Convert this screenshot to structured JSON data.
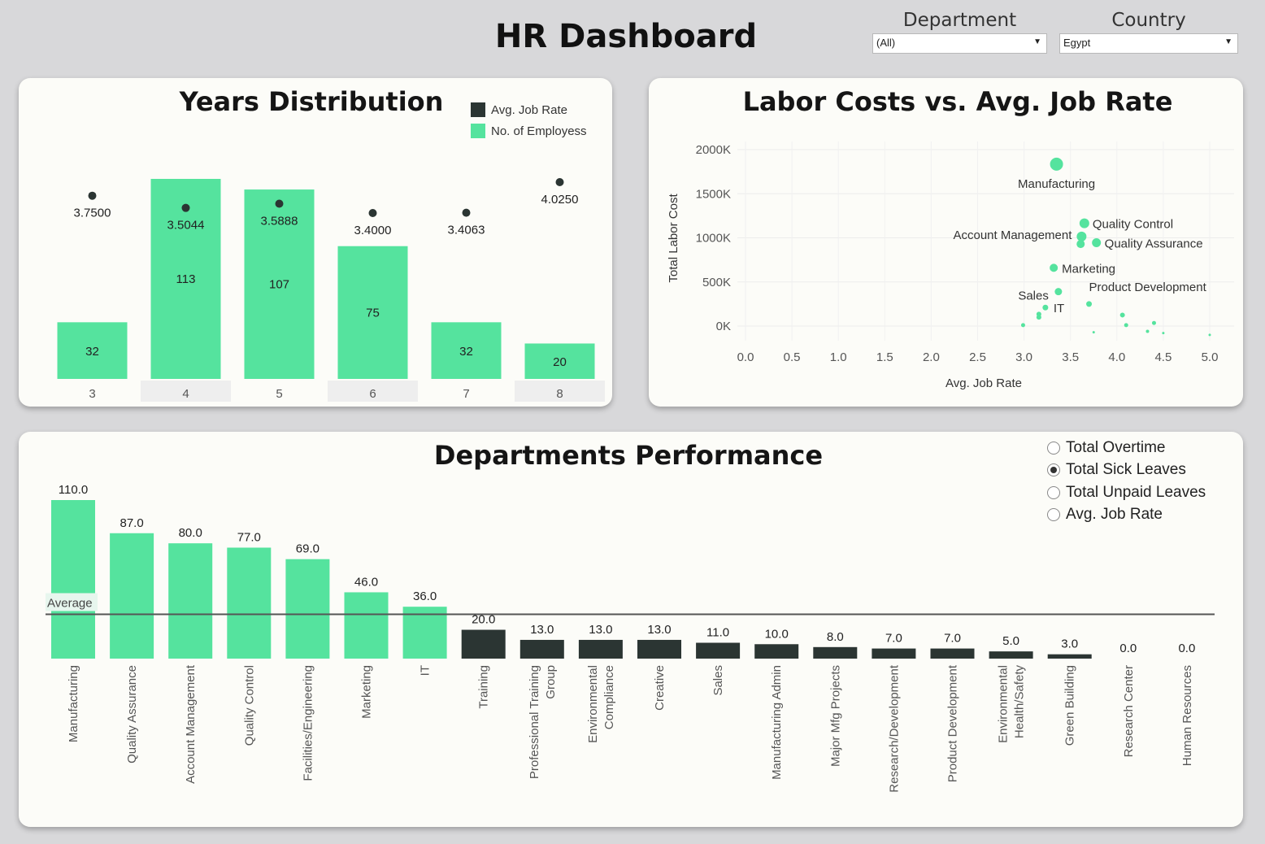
{
  "header": {
    "title": "HR Dashboard"
  },
  "filters": {
    "department": {
      "label": "Department",
      "value": "(All)"
    },
    "country": {
      "label": "Country",
      "value": "Egypt"
    }
  },
  "colors": {
    "green": "#55e39e",
    "dark": "#2b3533",
    "background": "#d8d8da",
    "panel": "#fcfcf8"
  },
  "years_panel": {
    "title": "Years Distribution",
    "legend": [
      {
        "label": "Avg. Job Rate",
        "color": "#2b3533"
      },
      {
        "label": "No. of Employess",
        "color": "#55e39e"
      }
    ]
  },
  "scatter_panel": {
    "title": "Labor Costs vs. Avg. Job Rate"
  },
  "dept_panel": {
    "title": "Departments Performance",
    "average_label": "Average",
    "measures": [
      {
        "label": "Total Overtime",
        "selected": false
      },
      {
        "label": "Total Sick Leaves",
        "selected": true
      },
      {
        "label": "Total Unpaid Leaves",
        "selected": false
      },
      {
        "label": "Avg. Job Rate",
        "selected": false
      }
    ]
  },
  "chart_data": [
    {
      "type": "bar",
      "title": "Years Distribution",
      "categories": [
        "3",
        "4",
        "5",
        "6",
        "7",
        "8"
      ],
      "series": [
        {
          "name": "No. of Employess",
          "values": [
            32,
            113,
            107,
            75,
            32,
            20
          ]
        },
        {
          "name": "Avg. Job Rate",
          "values": [
            3.75,
            3.5044,
            3.5888,
            3.4,
            3.4063,
            4.025
          ],
          "labels": [
            "3.7500",
            "3.5044",
            "3.5888",
            "3.4000",
            "3.4063",
            "4.0250"
          ]
        }
      ]
    },
    {
      "type": "scatter",
      "title": "Labor Costs vs. Avg. Job Rate",
      "xlabel": "Avg. Job Rate",
      "ylabel": "Total Labor Cost",
      "xlim": [
        0,
        5
      ],
      "ylim": [
        0,
        2000
      ],
      "xticks": [
        "0.0",
        "0.5",
        "1.0",
        "1.5",
        "2.0",
        "2.5",
        "3.0",
        "3.5",
        "4.0",
        "4.5",
        "5.0"
      ],
      "yticks": [
        "0K",
        "500K",
        "1000K",
        "1500K",
        "2000K"
      ],
      "grid": true,
      "points": [
        {
          "label": "Manufacturing",
          "x": 3.35,
          "y": 1835,
          "size": 8,
          "label_pos": "below"
        },
        {
          "label": "Quality Control",
          "x": 3.65,
          "y": 1165,
          "size": 6,
          "label_pos": "right"
        },
        {
          "label": "Account Management",
          "x": 3.62,
          "y": 1015,
          "size": 6,
          "label_pos": "left"
        },
        {
          "label": "",
          "x": 3.61,
          "y": 930,
          "size": 5
        },
        {
          "label": "Quality Assurance",
          "x": 3.78,
          "y": 945,
          "size": 5.5,
          "label_pos": "right"
        },
        {
          "label": "Marketing",
          "x": 3.32,
          "y": 660,
          "size": 5,
          "label_pos": "right"
        },
        {
          "label": "Sales",
          "x": 3.37,
          "y": 390,
          "size": 4.5,
          "label_pos": "left"
        },
        {
          "label": "Product Development",
          "x": 3.7,
          "y": 250,
          "size": 3.5,
          "label_pos": "aboveright"
        },
        {
          "label": "IT",
          "x": 3.23,
          "y": 210,
          "size": 3.5,
          "label_pos": "right"
        },
        {
          "label": "",
          "x": 3.16,
          "y": 135,
          "size": 3
        },
        {
          "label": "",
          "x": 3.16,
          "y": 100,
          "size": 3
        },
        {
          "label": "",
          "x": 2.99,
          "y": 10,
          "size": 2.5
        },
        {
          "label": "",
          "x": 4.06,
          "y": 125,
          "size": 3
        },
        {
          "label": "",
          "x": 4.1,
          "y": 10,
          "size": 2.5
        },
        {
          "label": "",
          "x": 4.4,
          "y": 35,
          "size": 2.5
        },
        {
          "label": "",
          "x": 4.33,
          "y": -60,
          "size": 2
        },
        {
          "label": "",
          "x": 3.75,
          "y": -70,
          "size": 1.5
        },
        {
          "label": "",
          "x": 4.5,
          "y": -80,
          "size": 1.5
        },
        {
          "label": "",
          "x": 5.0,
          "y": -100,
          "size": 1.5
        }
      ]
    },
    {
      "type": "bar",
      "title": "Departments Performance",
      "categories": [
        "Manufacturing",
        "Quality Assurance",
        "Account Management",
        "Quality Control",
        "Facilities/Engineering",
        "Marketing",
        "IT",
        "Training",
        "Professional Training Group",
        "Environmental Compliance",
        "Creative",
        "Sales",
        "Manufacturing Admin",
        "Major Mfg Projects",
        "Research/Development",
        "Product Development",
        "Environmental Health/Safety",
        "Green Building",
        "Research Center",
        "Human Resources"
      ],
      "category_lines": [
        [
          "Manufacturing"
        ],
        [
          "Quality Assurance"
        ],
        [
          "Account Management"
        ],
        [
          "Quality Control"
        ],
        [
          "Facilities/Engineering"
        ],
        [
          "Marketing"
        ],
        [
          "IT"
        ],
        [
          "Training"
        ],
        [
          "Professional Training",
          "Group"
        ],
        [
          "Environmental",
          "Compliance"
        ],
        [
          "Creative"
        ],
        [
          "Sales"
        ],
        [
          "Manufacturing Admin"
        ],
        [
          "Major Mfg Projects"
        ],
        [
          "Research/Development"
        ],
        [
          "Product Development"
        ],
        [
          "Environmental",
          "Health/Safety"
        ],
        [
          "Green Building"
        ],
        [
          "Research Center"
        ],
        [
          "Human Resources"
        ]
      ],
      "series": [
        {
          "name": "Total Sick Leaves",
          "values": [
            110,
            87,
            80,
            77,
            69,
            46,
            36,
            20,
            13,
            13,
            13,
            11,
            10,
            8,
            7,
            7,
            5,
            3,
            0,
            0
          ]
        }
      ],
      "average": 30.75
    }
  ]
}
